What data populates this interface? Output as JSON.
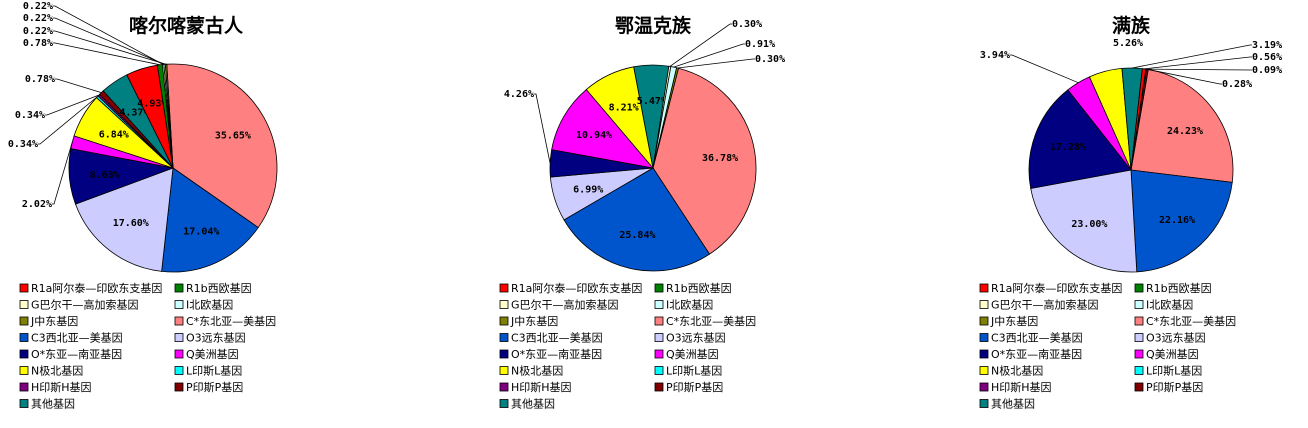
{
  "colors": {
    "R1a": "#ff0000",
    "R1b": "#008000",
    "G": "#ffffcc",
    "I": "#ccffff",
    "J": "#808000",
    "C_NE": "#ff8080",
    "C3": "#0055cc",
    "O3": "#ccccff",
    "O_SE": "#000080",
    "Q": "#ff00ff",
    "N": "#ffff00",
    "L": "#00ffff",
    "H": "#800080",
    "P": "#800000",
    "other": "#008080"
  },
  "legend": [
    {
      "key": "R1a",
      "label": "R1a阿尔泰—印欧东支基因"
    },
    {
      "key": "R1b",
      "label": "R1b西欧基因"
    },
    {
      "key": "G",
      "label": "G巴尔干—高加索基因"
    },
    {
      "key": "I",
      "label": "I北欧基因"
    },
    {
      "key": "J",
      "label": "J中东基因"
    },
    {
      "key": "C_NE",
      "label": "C*东北亚—美基因"
    },
    {
      "key": "C3",
      "label": "C3西北亚—美基因"
    },
    {
      "key": "O3",
      "label": "O3远东基因"
    },
    {
      "key": "O_SE",
      "label": "O*东亚—南亚基因"
    },
    {
      "key": "Q",
      "label": "Q美洲基因"
    },
    {
      "key": "N",
      "label": "N极北基因"
    },
    {
      "key": "L",
      "label": "L印斯L基因"
    },
    {
      "key": "H",
      "label": "H印斯H基因"
    },
    {
      "key": "P",
      "label": "P印斯P基因"
    },
    {
      "key": "other",
      "label": "其他基因"
    }
  ],
  "chart_data": [
    {
      "type": "pie",
      "title": "喀尔喀蒙古人",
      "slices": [
        {
          "key": "C_NE",
          "value": 35.65,
          "label": "35.65%"
        },
        {
          "key": "C3",
          "value": 17.04,
          "label": "17.04%"
        },
        {
          "key": "O3",
          "value": 17.6,
          "label": "17.60%"
        },
        {
          "key": "O_SE",
          "value": 8.63,
          "label": "8.63%"
        },
        {
          "key": "Q",
          "value": 2.02,
          "label": "2.02%"
        },
        {
          "key": "N",
          "value": 6.84,
          "label": "6.84%"
        },
        {
          "key": "L",
          "value": 0.34,
          "label": "0.34%"
        },
        {
          "key": "H",
          "value": 0.34,
          "label": "0.34%"
        },
        {
          "key": "P",
          "value": 0.78,
          "label": "0.78%"
        },
        {
          "key": "other",
          "value": 4.37,
          "label": "4.37%"
        },
        {
          "key": "R1a",
          "value": 4.93,
          "label": "4.93%"
        },
        {
          "key": "R1b",
          "value": 0.78,
          "label": "0.78%"
        },
        {
          "key": "G",
          "value": 0.22,
          "label": "0.22%"
        },
        {
          "key": "I",
          "value": 0.22,
          "label": "0.22%"
        },
        {
          "key": "J",
          "value": 0.22,
          "label": "0.22%"
        }
      ]
    },
    {
      "type": "pie",
      "title": "鄂温克族",
      "slices": [
        {
          "key": "C_NE",
          "value": 36.78,
          "label": "36.78%"
        },
        {
          "key": "C3",
          "value": 25.84,
          "label": "25.84%"
        },
        {
          "key": "O3",
          "value": 6.99,
          "label": "6.99%"
        },
        {
          "key": "O_SE",
          "value": 4.26,
          "label": "4.26%"
        },
        {
          "key": "Q",
          "value": 10.94,
          "label": "10.94%"
        },
        {
          "key": "N",
          "value": 8.21,
          "label": "8.21%"
        },
        {
          "key": "other",
          "value": 5.47,
          "label": "5.47%"
        },
        {
          "key": "G",
          "value": 0.3,
          "label": "0.30%"
        },
        {
          "key": "I",
          "value": 0.91,
          "label": "0.91%"
        },
        {
          "key": "J",
          "value": 0.3,
          "label": "0.30%"
        }
      ]
    },
    {
      "type": "pie",
      "title": "满族",
      "slices": [
        {
          "key": "C_NE",
          "value": 24.23,
          "label": "24.23%"
        },
        {
          "key": "C3",
          "value": 22.16,
          "label": "22.16%"
        },
        {
          "key": "O3",
          "value": 23.0,
          "label": "23.00%"
        },
        {
          "key": "O_SE",
          "value": 17.28,
          "label": "17.28%"
        },
        {
          "key": "Q",
          "value": 3.94,
          "label": "3.94%"
        },
        {
          "key": "N",
          "value": 5.26,
          "label": "5.26%"
        },
        {
          "key": "other",
          "value": 3.19,
          "label": "3.19%"
        },
        {
          "key": "R1a",
          "value": 0.56,
          "label": "0.56%"
        },
        {
          "key": "J",
          "value": 0.09,
          "label": "0.09%"
        },
        {
          "key": "P",
          "value": 0.28,
          "label": "0.28%"
        }
      ]
    }
  ]
}
